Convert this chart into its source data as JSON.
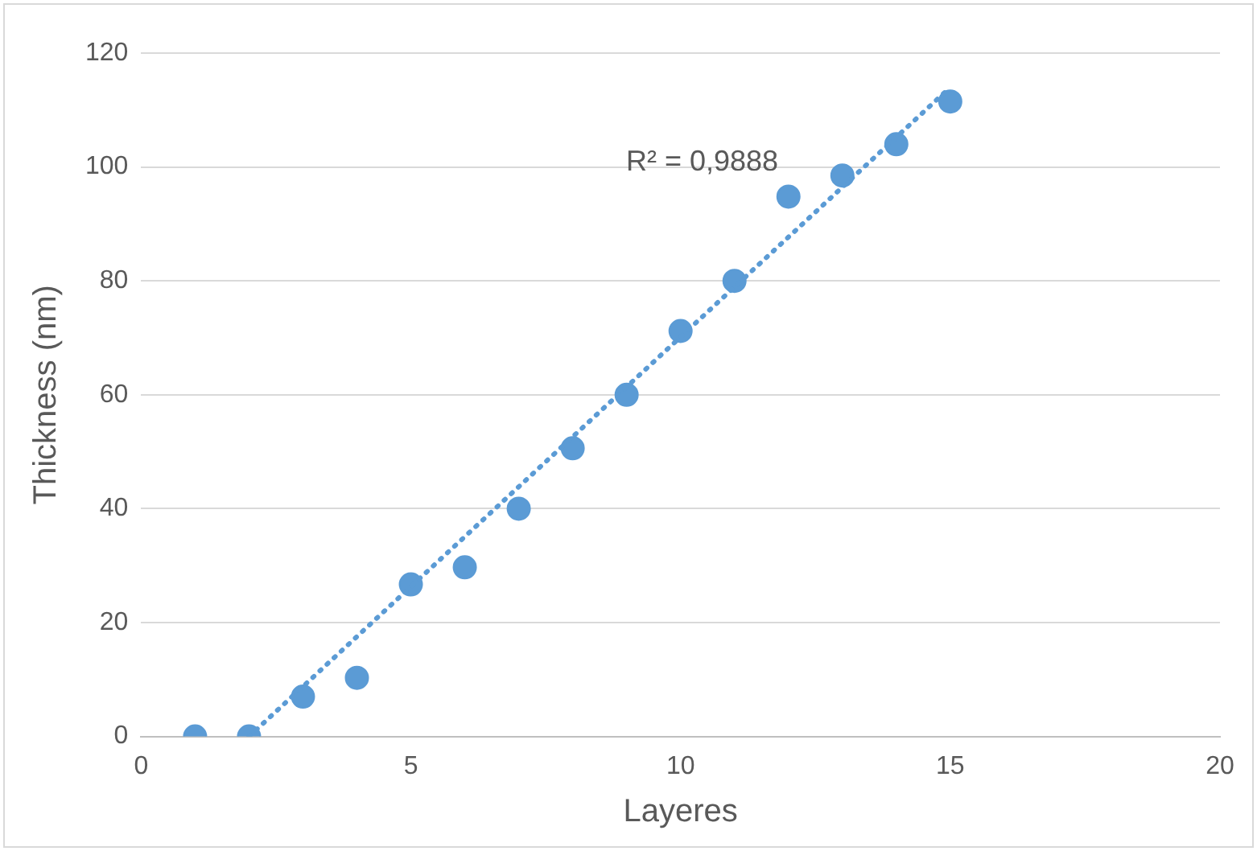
{
  "chart_data": {
    "type": "scatter",
    "xlabel": "Layeres",
    "ylabel": "Thickness (nm)",
    "x": [
      1,
      2,
      3,
      4,
      5,
      6,
      7,
      8,
      9,
      10,
      11,
      12,
      13,
      14,
      15
    ],
    "series": [
      {
        "type": "scatter",
        "color": "#5b9bd5",
        "marker": "circle",
        "values": [
          0,
          0,
          7,
          10.3,
          26.7,
          29.7,
          40,
          50.6,
          60,
          71.2,
          80,
          94.8,
          98.5,
          104,
          111.5
        ]
      },
      {
        "type": "line",
        "color": "#5b9bd5",
        "line_style": "dotted",
        "marker": "none",
        "x": [
          2,
          15
        ],
        "values": [
          0,
          114
        ]
      }
    ],
    "xlim": [
      0,
      20
    ],
    "xticks": [
      0,
      5,
      10,
      15,
      20
    ],
    "ylim": [
      0,
      120
    ],
    "yticks": [
      0,
      20,
      40,
      60,
      80,
      100,
      120
    ],
    "grid": "y",
    "legend": false,
    "annotations": [
      "R² = 0,9888"
    ]
  }
}
